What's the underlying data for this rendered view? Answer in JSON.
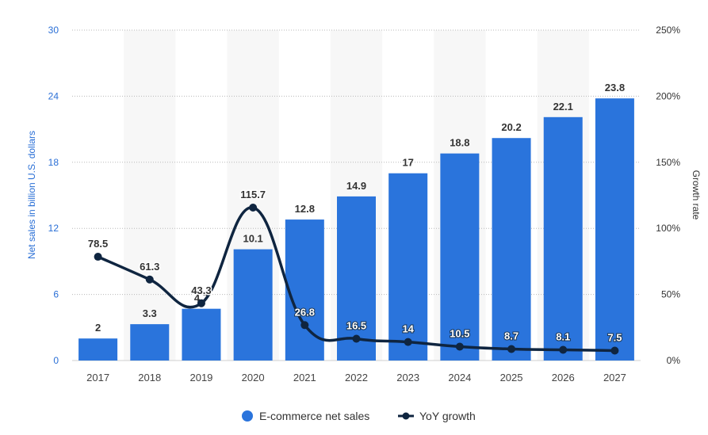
{
  "chart_data": {
    "type": "bar",
    "categories": [
      "2017",
      "2018",
      "2019",
      "2020",
      "2021",
      "2022",
      "2023",
      "2024",
      "2025",
      "2026",
      "2027"
    ],
    "series": [
      {
        "name": "E-commerce net sales",
        "type": "bar",
        "axis": "left",
        "color": "#2a74dc",
        "values": [
          2,
          3.3,
          4.7,
          10.1,
          12.8,
          14.9,
          17,
          18.8,
          20.2,
          22.1,
          23.8
        ],
        "labels": [
          "2",
          "3.3",
          "4.7",
          "10.1",
          "12.8",
          "14.9",
          "17",
          "18.8",
          "20.2",
          "22.1",
          "23.8"
        ]
      },
      {
        "name": "YoY growth",
        "type": "line",
        "axis": "right",
        "color": "#0f2540",
        "values": [
          78.5,
          61.3,
          43.3,
          115.7,
          26.8,
          16.5,
          14,
          10.5,
          8.7,
          8.1,
          7.5
        ],
        "labels": [
          "78.5",
          "61.3",
          "43.3",
          "115.7",
          "26.8",
          "16.5",
          "14",
          "10.5",
          "8.7",
          "8.1",
          "7.5"
        ]
      }
    ],
    "ylabel": "Net sales in billion U.S. dollars",
    "y2label": "Growth rate",
    "ylim": [
      0,
      30
    ],
    "y2lim": [
      0,
      250
    ],
    "yticks": [
      "0",
      "6",
      "12",
      "18",
      "24",
      "30"
    ],
    "y2ticks": [
      "0%",
      "50%",
      "100%",
      "150%",
      "200%",
      "250%"
    ],
    "grid": true,
    "legend_position": "bottom-center"
  }
}
